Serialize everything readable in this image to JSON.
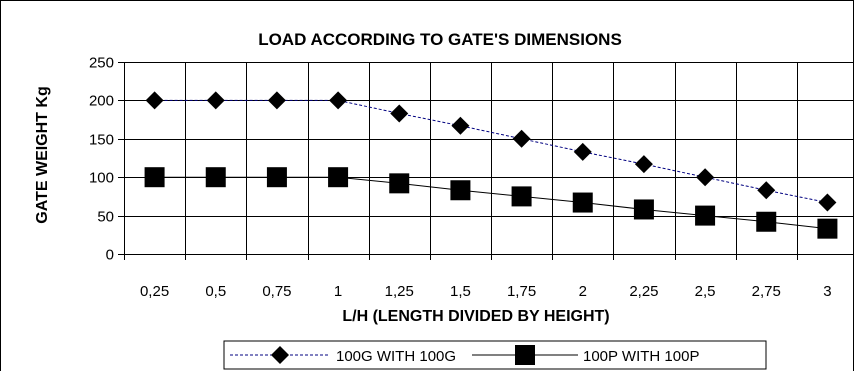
{
  "chart_data": {
    "type": "line",
    "title": "LOAD ACCORDING TO GATE'S DIMENSIONS",
    "xlabel": "L/H (LENGTH DIVIDED BY  HEIGHT)",
    "ylabel": "GATE WEIGHT Kg",
    "categories": [
      "0,25",
      "0,5",
      "0,75",
      "1",
      "1,25",
      "1,5",
      "1,75",
      "2",
      "2,25",
      "2,5",
      "2,75",
      "3"
    ],
    "y_ticks": [
      "0",
      "50",
      "100",
      "150",
      "200",
      "250"
    ],
    "ylim": [
      0,
      250
    ],
    "grid": true,
    "legend_position": "bottom",
    "series": [
      {
        "name": "100G WITH 100G",
        "values": [
          200,
          200,
          200,
          200,
          183,
          167,
          150,
          133,
          117,
          100,
          83,
          67
        ],
        "marker": "diamond",
        "line_style": "dashed",
        "line_color": "#000080",
        "marker_color": "#000000"
      },
      {
        "name": "100P WITH 100P",
        "values": [
          100,
          100,
          100,
          100,
          92,
          83,
          75,
          67,
          58,
          50,
          42,
          33
        ],
        "marker": "square",
        "line_style": "solid",
        "line_color": "#000000",
        "marker_color": "#000000"
      }
    ]
  }
}
